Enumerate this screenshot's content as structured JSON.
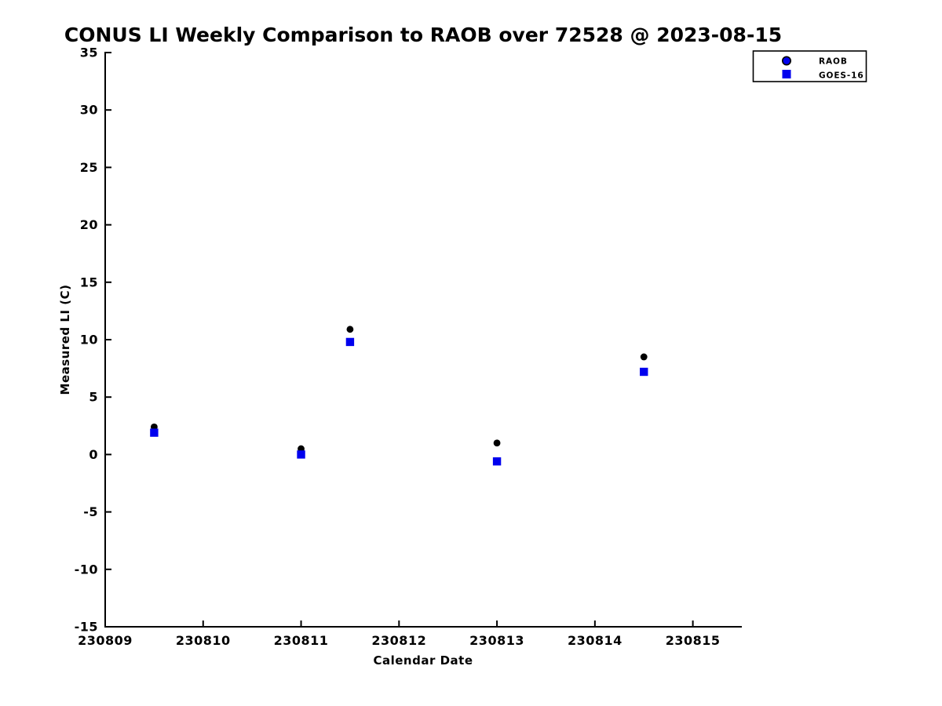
{
  "chart_data": {
    "type": "scatter",
    "title": "CONUS LI Weekly Comparison to RAOB over 72528 @ 2023-08-15",
    "xlabel": "Calendar Date",
    "ylabel": "Measured LI (C)",
    "xlim": [
      230809,
      230815.5
    ],
    "ylim": [
      -15,
      35
    ],
    "xticks": [
      230809,
      230810,
      230811,
      230812,
      230813,
      230814,
      230815
    ],
    "yticks": [
      35,
      30,
      25,
      20,
      15,
      10,
      5,
      0,
      -5,
      -10,
      -15
    ],
    "grid": false,
    "x": [
      230809.5,
      230811.0,
      230811.5,
      230813.0,
      230814.5
    ],
    "series": [
      {
        "name": "RAOB",
        "marker": "circle",
        "marker_color": "#000000",
        "values": [
          2.4,
          0.5,
          10.9,
          1.0,
          8.5
        ]
      },
      {
        "name": "GOES-16",
        "marker": "square",
        "marker_color": "#0000ee",
        "values": [
          1.9,
          0.0,
          9.8,
          -0.6,
          7.2
        ]
      }
    ],
    "legend": {
      "position": "top-right-outside-axes",
      "entries": [
        {
          "label": "RAOB",
          "marker": "circle",
          "color": "#0000ee",
          "edge_color": "#000000"
        },
        {
          "label": "GOES-16",
          "marker": "square",
          "color": "#0000ee",
          "edge_color": "#0000ee"
        }
      ]
    }
  },
  "colors": {
    "background": "#ffffff",
    "axis": "#000000",
    "text": "#000000",
    "series_blue": "#0000ee",
    "series_black": "#000000"
  }
}
